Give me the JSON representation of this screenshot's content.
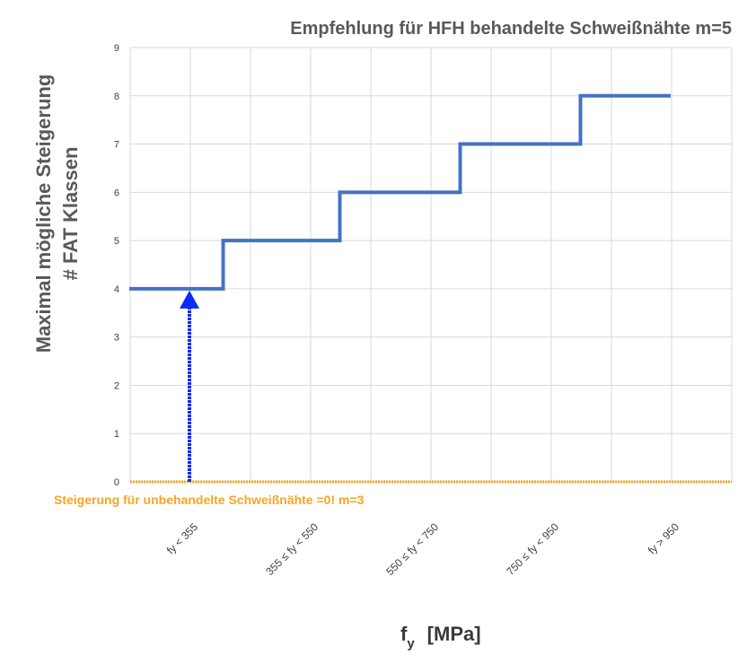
{
  "chart_data": {
    "type": "line",
    "title": "Empfehlung für HFH behandelte Schweißnähte m=5",
    "ylabel_line1": "Maximal mögliche Steigerung",
    "ylabel_line2": "# FAT Klassen",
    "xlabel_main": "f",
    "xlabel_sub": "y",
    "xlabel_unit": "[MPa]",
    "categories": [
      "fy < 355",
      "355 ≤ fy < 550",
      "550 ≤ fy < 750",
      "750 ≤ fy < 950",
      "fy > 950"
    ],
    "ylim": [
      0,
      9
    ],
    "yticks": [
      "0",
      "1",
      "2",
      "3",
      "4",
      "5",
      "6",
      "7",
      "8",
      "9"
    ],
    "grid": true,
    "series": [
      {
        "name": "HFH behandelte Schweißnähte m=5",
        "color": "#4472c4",
        "step_x": [
          -0.5,
          0.28,
          0.28,
          1.25,
          1.25,
          2.25,
          2.25,
          3.25,
          3.25,
          4.0
        ],
        "step_y": [
          4,
          4,
          5,
          5,
          6,
          6,
          7,
          7,
          8,
          8
        ]
      },
      {
        "name": "Steigerung für unbehandelte Schweißnähte =0! m=3",
        "color": "#f5a623",
        "x": [
          -0.5,
          4.5
        ],
        "y": [
          0,
          0
        ]
      }
    ],
    "annotation": {
      "text": "Steigerung für unbehandelte Schweißnähte =0! m=3",
      "color": "#f5a623"
    },
    "arrow": {
      "x": 0,
      "y_from": 0,
      "y_to": 4,
      "color": "#0a2cf5"
    }
  }
}
